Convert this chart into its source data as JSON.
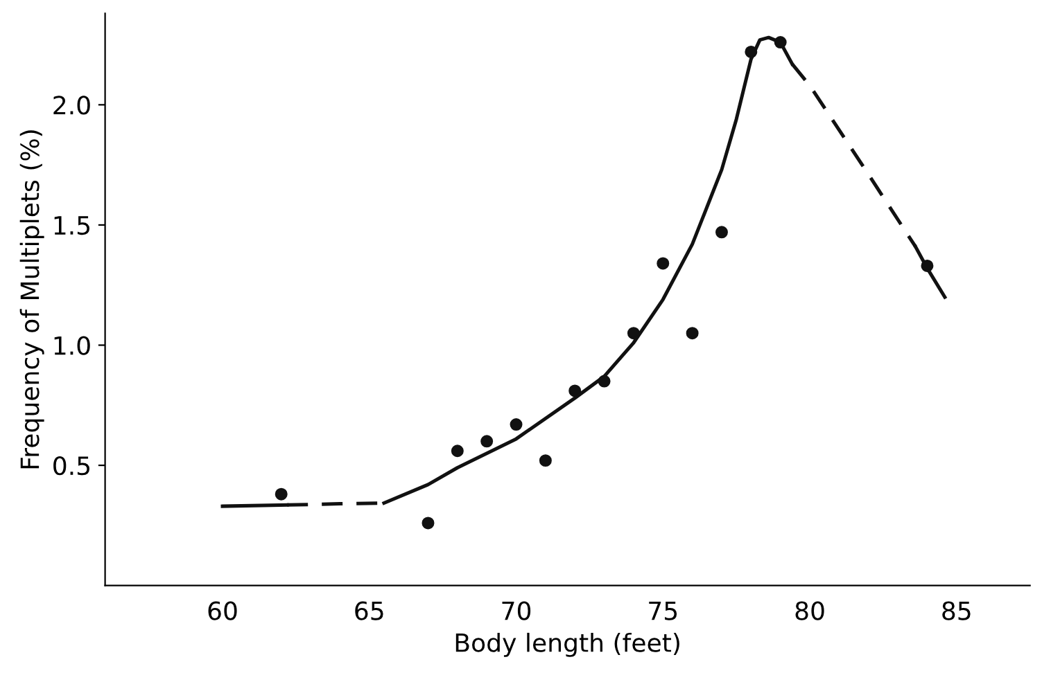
{
  "chart_data": {
    "type": "scatter",
    "xlabel": "Body length (feet)",
    "ylabel": "Frequency of Multiplets (%)",
    "xlim": [
      56,
      87.5
    ],
    "ylim": [
      0,
      2.38
    ],
    "xticks": [
      60,
      65,
      70,
      75,
      80,
      85
    ],
    "yticks": [
      {
        "value": 0.5,
        "label": "0.5"
      },
      {
        "value": 1.0,
        "label": "1.0"
      },
      {
        "value": 1.5,
        "label": "1.5"
      },
      {
        "value": 2.0,
        "label": "2.0"
      }
    ],
    "grid": false,
    "legend": false,
    "marker": "circle",
    "series": [
      {
        "color": "#111111",
        "x": [
          62,
          67,
          68,
          69,
          70,
          71,
          72,
          73,
          74,
          75,
          76,
          77,
          78,
          79,
          84
        ],
        "values": [
          0.38,
          0.26,
          0.56,
          0.6,
          0.67,
          0.52,
          0.81,
          0.85,
          1.05,
          1.34,
          1.05,
          1.47,
          2.22,
          2.26,
          1.33
        ]
      },
      {
        "type": "line",
        "color": "#111111",
        "line_style": "solid",
        "marker": "none",
        "x": [
          60,
          62.2
        ],
        "values": [
          0.33,
          0.335
        ]
      },
      {
        "type": "line",
        "color": "#111111",
        "line_style": "dashed",
        "marker": "none",
        "x": [
          62.2,
          64,
          65.5
        ],
        "values": [
          0.335,
          0.34,
          0.343
        ]
      },
      {
        "type": "line",
        "color": "#111111",
        "line_style": "solid",
        "marker": "none",
        "x": [
          65.5,
          67,
          68,
          70,
          72,
          73,
          74,
          75,
          76,
          77,
          77.5,
          78,
          78.3,
          78.6,
          79,
          79.4
        ],
        "values": [
          0.343,
          0.42,
          0.49,
          0.61,
          0.78,
          0.87,
          1.01,
          1.19,
          1.42,
          1.73,
          1.94,
          2.19,
          2.27,
          2.28,
          2.26,
          2.17
        ]
      },
      {
        "type": "line",
        "color": "#111111",
        "line_style": "dashed",
        "marker": "none",
        "x": [
          79.4,
          80,
          82,
          83.6
        ],
        "values": [
          2.17,
          2.08,
          1.71,
          1.41
        ]
      },
      {
        "type": "line",
        "color": "#111111",
        "line_style": "solid",
        "marker": "none",
        "x": [
          83.6,
          84,
          84.6
        ],
        "values": [
          1.41,
          1.32,
          1.2
        ]
      }
    ]
  }
}
